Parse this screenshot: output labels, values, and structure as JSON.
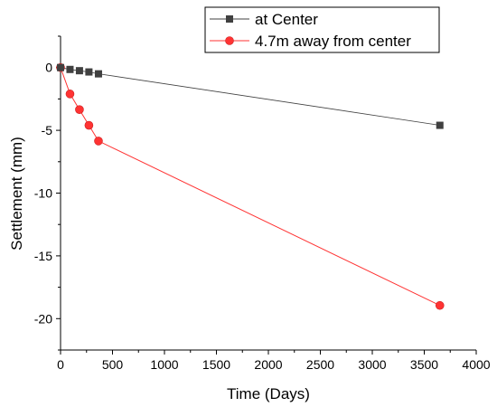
{
  "chart_data": {
    "type": "line",
    "title": "",
    "xlabel": "Time (Days)",
    "ylabel": "Settlement (mm)",
    "xlim": [
      0,
      4000
    ],
    "ylim": [
      -22.5,
      2.5
    ],
    "xticks": [
      0,
      500,
      1000,
      1500,
      2000,
      2500,
      3000,
      3500,
      4000
    ],
    "yticks": [
      0,
      -5,
      -10,
      -15,
      -20
    ],
    "xtick_labels": [
      "0",
      "500",
      "1000",
      "1500",
      "2000",
      "2500",
      "3000",
      "3500",
      "4000"
    ],
    "ytick_labels": [
      "0",
      "-5",
      "-10",
      "-15",
      "-20"
    ],
    "grid": false,
    "legend_position": "top-right",
    "series": [
      {
        "name": "at Center",
        "color": "#404040",
        "marker": "square",
        "x": [
          0,
          91,
          182,
          273,
          365,
          3650
        ],
        "y": [
          0,
          -0.15,
          -0.25,
          -0.35,
          -0.5,
          -4.6
        ]
      },
      {
        "name": "4.7m away from center",
        "color": "#ff3333",
        "marker": "circle",
        "x": [
          0,
          91,
          182,
          273,
          365,
          3650
        ],
        "y": [
          0,
          -2.1,
          -3.35,
          -4.6,
          -5.85,
          -18.95
        ]
      }
    ]
  }
}
